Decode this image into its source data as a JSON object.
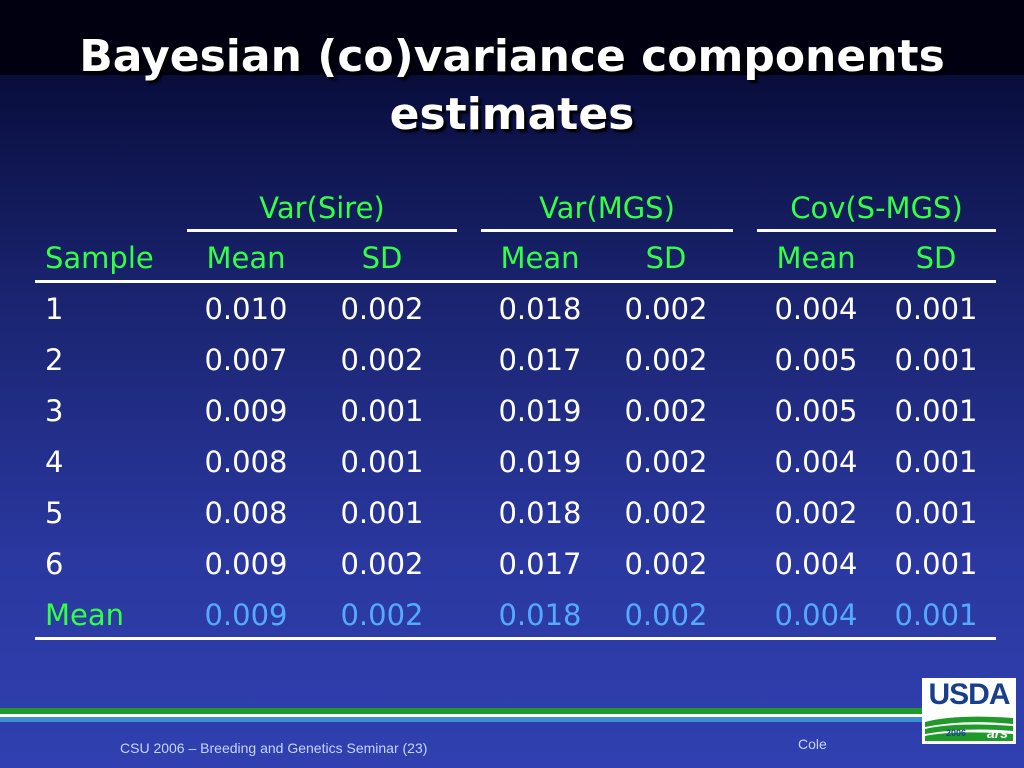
{
  "title": {
    "line1": "Bayesian (co)variance components",
    "line2": "estimates"
  },
  "table": {
    "groups": [
      "Var(Sire)",
      "Var(MGS)",
      "Cov(S-MGS)"
    ],
    "sample_header": "Sample",
    "subheaders": [
      "Mean",
      "SD",
      "Mean",
      "SD",
      "Mean",
      "SD"
    ],
    "rows": [
      {
        "sample": "1",
        "values": [
          "0.010",
          "0.002",
          "0.018",
          "0.002",
          "0.004",
          "0.001"
        ]
      },
      {
        "sample": "2",
        "values": [
          "0.007",
          "0.002",
          "0.017",
          "0.002",
          "0.005",
          "0.001"
        ]
      },
      {
        "sample": "3",
        "values": [
          "0.009",
          "0.001",
          "0.019",
          "0.002",
          "0.005",
          "0.001"
        ]
      },
      {
        "sample": "4",
        "values": [
          "0.008",
          "0.001",
          "0.019",
          "0.002",
          "0.004",
          "0.001"
        ]
      },
      {
        "sample": "5",
        "values": [
          "0.008",
          "0.001",
          "0.018",
          "0.002",
          "0.002",
          "0.001"
        ]
      },
      {
        "sample": "6",
        "values": [
          "0.009",
          "0.002",
          "0.017",
          "0.002",
          "0.004",
          "0.001"
        ]
      }
    ],
    "summary": {
      "label": "Mean",
      "values": [
        "0.009",
        "0.002",
        "0.018",
        "0.002",
        "0.004",
        "0.001"
      ]
    }
  },
  "footer": {
    "seminar": "CSU 2006 – Breeding and Genetics Seminar (23)",
    "author": "Cole"
  },
  "logo": {
    "name": "USDA",
    "year": "2006"
  },
  "colors": {
    "header_green": "#33ff44",
    "mean_blue": "#55aaff",
    "text_white": "#ffffff"
  }
}
